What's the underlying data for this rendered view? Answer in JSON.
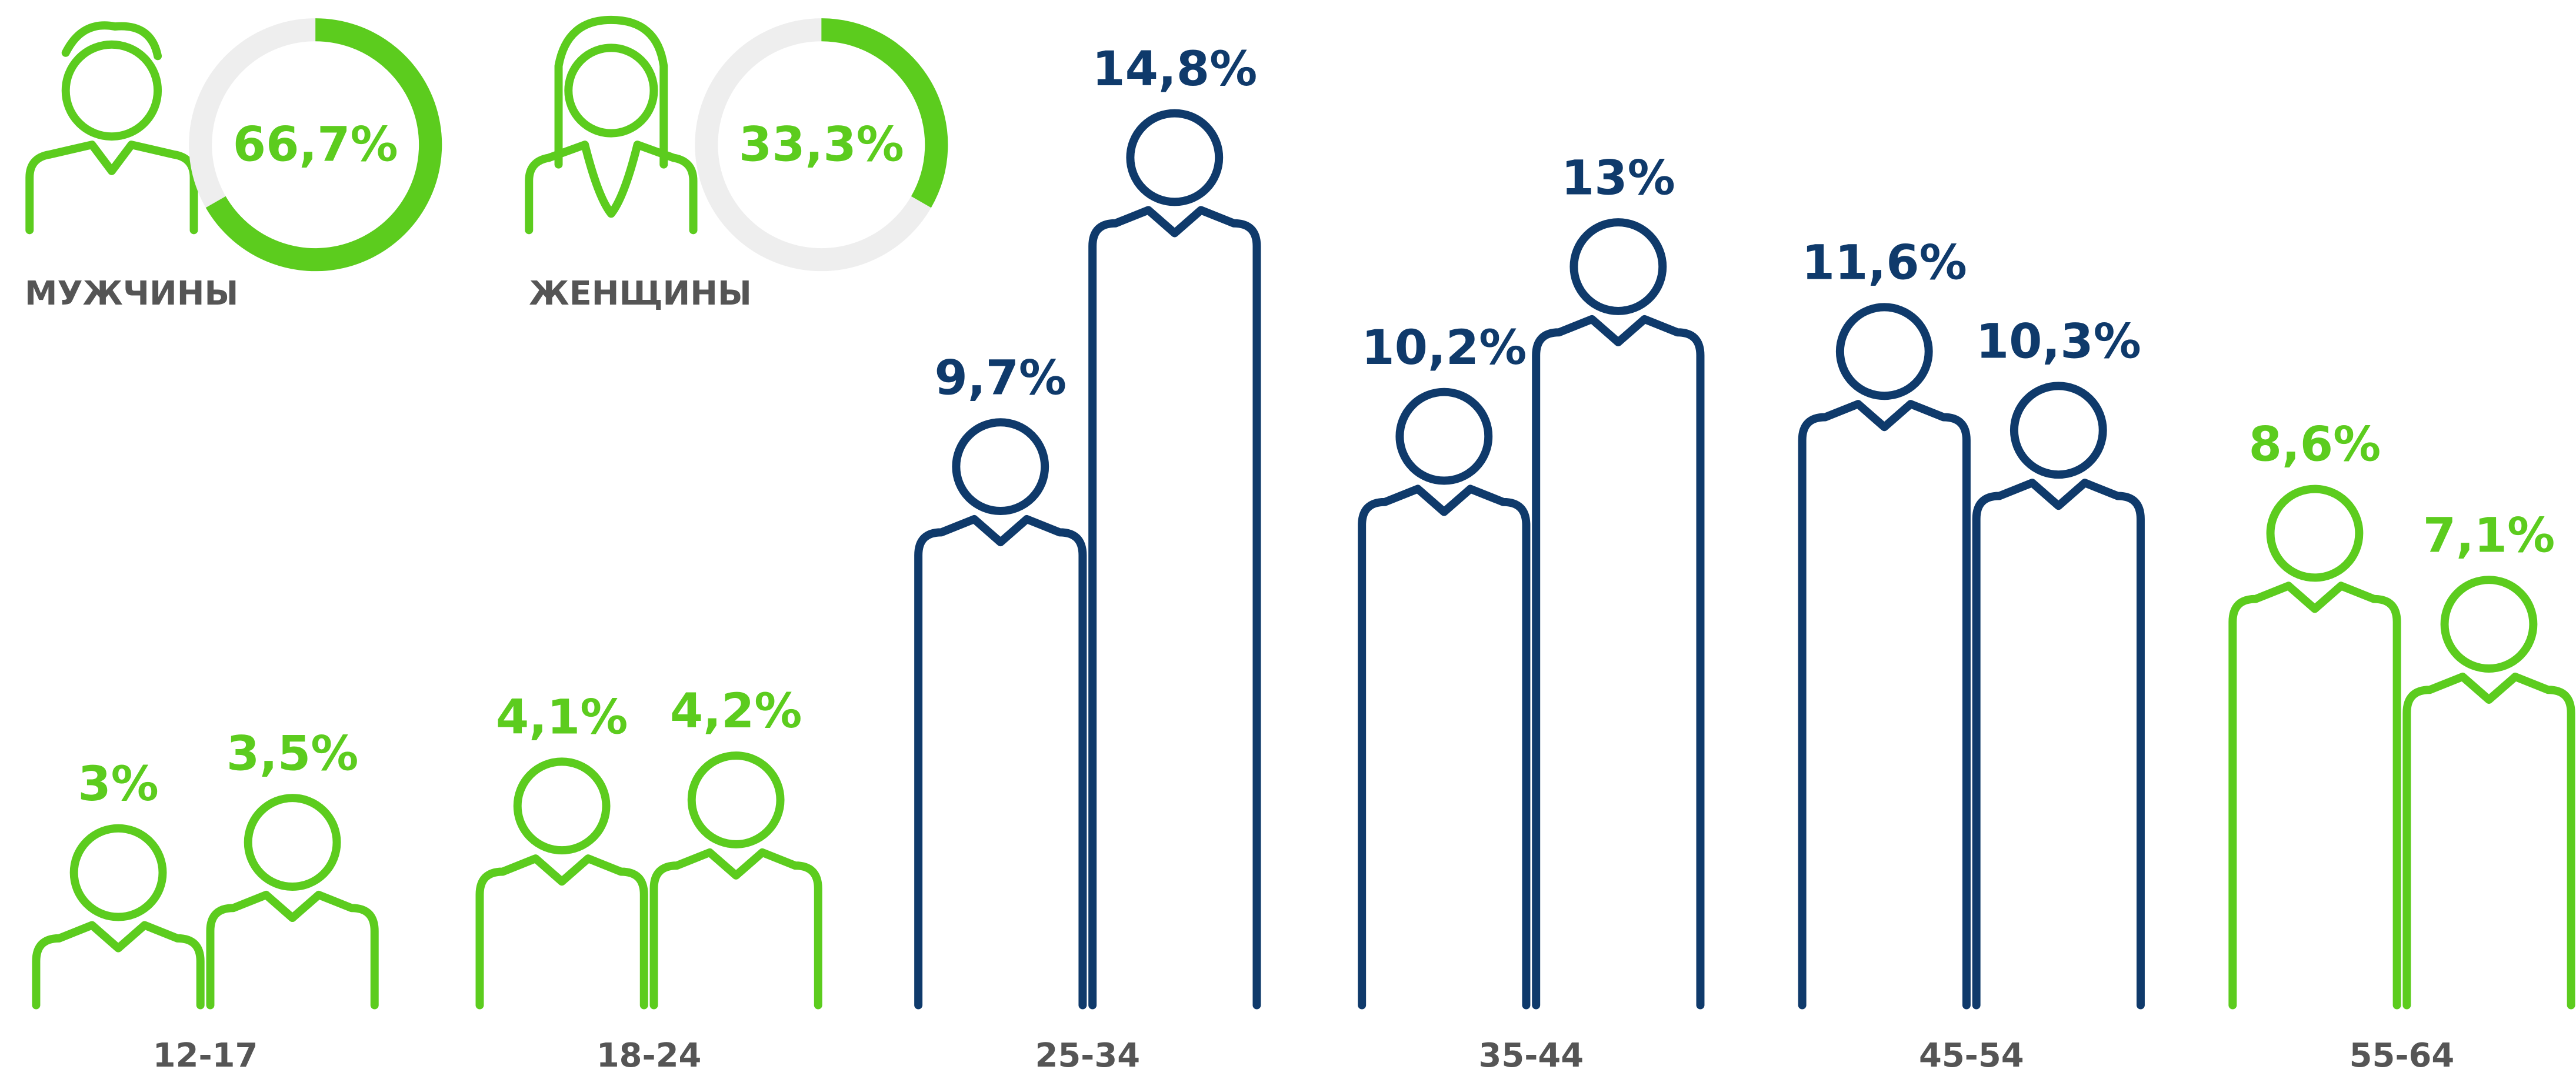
{
  "chart_data": [
    {
      "type": "donut",
      "categories": [
        "МУЖЧИНЫ",
        "ЖЕНЩИНЫ"
      ],
      "values": [
        66.7,
        33.3
      ],
      "value_labels": [
        "66,7%",
        "33,3%"
      ],
      "ylim": [
        0,
        100
      ],
      "color": "#5ccc1e",
      "track_color": "#eeeeee",
      "label_color": "#555555"
    },
    {
      "type": "pictogram",
      "categories": [
        "12-17",
        "18-24",
        "25-34",
        "35-44",
        "45-54",
        "55-64"
      ],
      "series": [
        {
          "values": [
            3,
            4.1,
            9.7,
            10.2,
            11.6,
            8.6
          ],
          "value_labels": [
            "3%",
            "4,1%",
            "9,7%",
            "10,2%",
            "11,6%",
            "8,6%"
          ]
        },
        {
          "values": [
            3.5,
            4.2,
            14.8,
            13,
            10.3,
            7.1
          ],
          "value_labels": [
            "3,5%",
            "4,2%",
            "14,8%",
            "13%",
            "10,3%",
            "7,1%"
          ]
        }
      ],
      "colors": [
        "#5ccc1e",
        "#5ccc1e",
        "#0f3a6b",
        "#0f3a6b",
        "#0f3a6b",
        "#5ccc1e"
      ],
      "ylim": [
        0,
        15.5
      ],
      "label_color": "#555555"
    }
  ]
}
